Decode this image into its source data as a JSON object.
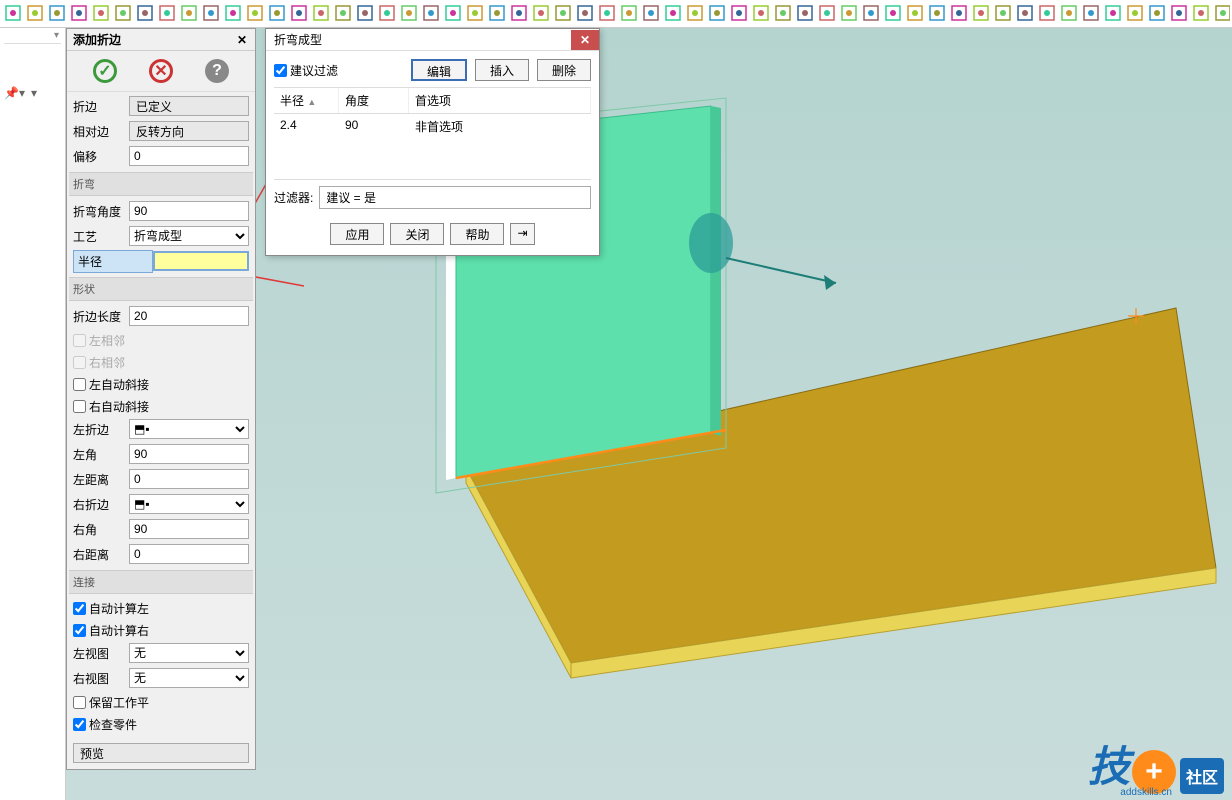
{
  "panel": {
    "title": "添加折边",
    "fold_edge": "折边",
    "defined_btn": "已定义",
    "relative_edge": "相对边",
    "reverse_btn": "反转方向",
    "offset": "偏移",
    "offset_val": "0",
    "sec_bend": "折弯",
    "bend_angle": "折弯角度",
    "bend_angle_val": "90",
    "process": "工艺",
    "process_val": "折弯成型",
    "radius": "半径",
    "radius_val": "",
    "sec_shape": "形状",
    "fold_length": "折边长度",
    "fold_length_val": "20",
    "left_adj": "左相邻",
    "right_adj": "右相邻",
    "left_auto_miter": "左自动斜接",
    "right_auto_miter": "右自动斜接",
    "left_fold": "左折边",
    "right_fold": "右折边",
    "left_angle": "左角",
    "left_angle_val": "90",
    "left_dist": "左距离",
    "left_dist_val": "0",
    "right_angle": "右角",
    "right_angle_val": "90",
    "right_dist": "右距离",
    "right_dist_val": "0",
    "sec_connect": "连接",
    "auto_calc_left": "自动计算左",
    "auto_calc_right": "自动计算右",
    "left_view": "左视图",
    "right_view": "右视图",
    "none_opt": "无",
    "keep_work": "保留工作平",
    "check_part": "检查零件",
    "preview": "预览"
  },
  "dialog": {
    "title": "折弯成型",
    "suggest_filter": "建议过滤",
    "edit": "编辑",
    "insert": "插入",
    "delete": "删除",
    "col_radius": "半径",
    "col_angle": "角度",
    "col_pref": "首选项",
    "row_radius": "2.4",
    "row_angle": "90",
    "row_pref": "非首选项",
    "filter_label": "过滤器:",
    "filter_val": "建议 = 是",
    "apply": "应用",
    "close": "关闭",
    "help": "帮助"
  },
  "colors": {
    "plate": "#c39b1e",
    "plate_edge": "#e8d456",
    "flange": "#5de0ab",
    "flange_frame": "#7fc9a8",
    "axis_orange": "#ff8c1a",
    "axis_teal": "#2b9d97",
    "arrow_red": "#e03a3a"
  },
  "watermark": {
    "text": "技",
    "tag": "社区",
    "url": "addskills.cn"
  }
}
